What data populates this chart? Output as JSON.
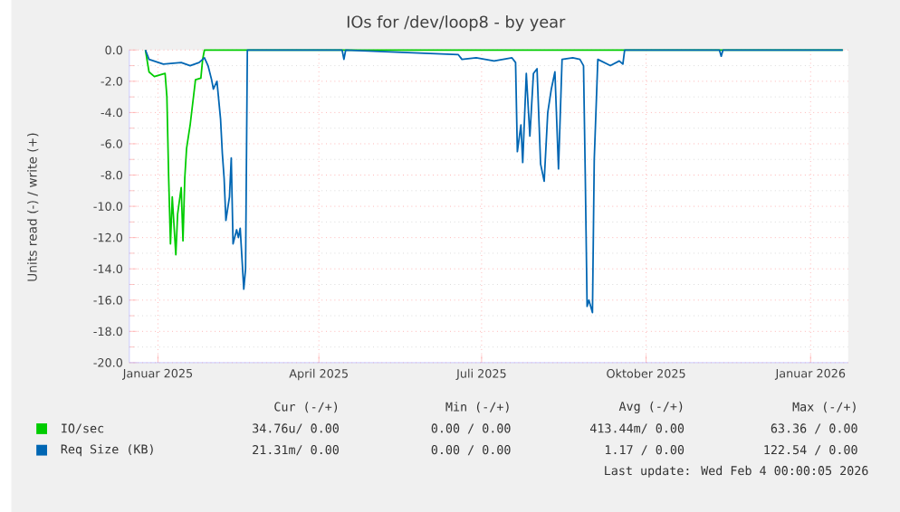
{
  "chart_data": {
    "type": "line",
    "title": "IOs for /dev/loop8 - by year",
    "ylabel": "Units read (-) / write (+)",
    "xlim": [
      "2024-12-16",
      "2026-01-22"
    ],
    "xticks": [
      {
        "value": "2025-01-01",
        "label": "Januar 2025"
      },
      {
        "value": "2025-04-01",
        "label": "April 2025"
      },
      {
        "value": "2025-07-01",
        "label": "Juli 2025"
      },
      {
        "value": "2025-10-01",
        "label": "Oktober 2025"
      },
      {
        "value": "2026-01-01",
        "label": "Januar 2026"
      }
    ],
    "ylim": [
      -20,
      0
    ],
    "yticks": [
      {
        "value": -20,
        "label": "-20.0"
      },
      {
        "value": -18,
        "label": "-18.0"
      },
      {
        "value": -16,
        "label": "-16.0"
      },
      {
        "value": -14,
        "label": "-14.0"
      },
      {
        "value": -12,
        "label": "-12.0"
      },
      {
        "value": -10,
        "label": "-10.0"
      },
      {
        "value": -8,
        "label": "-8.0"
      },
      {
        "value": -6,
        "label": "-6.0"
      },
      {
        "value": -4,
        "label": "-4.0"
      },
      {
        "value": -2,
        "label": "-2.0"
      },
      {
        "value": 0,
        "label": "0.0"
      }
    ],
    "grid": true,
    "legend": "bottom",
    "marker": "none",
    "line_style": "solid",
    "series": [
      {
        "name": "IO/sec",
        "color": "#00cc00",
        "x": [
          "2024-12-25",
          "2024-12-27",
          "2024-12-30",
          "2025-01-02",
          "2025-01-05",
          "2025-01-06",
          "2025-01-07",
          "2025-01-08",
          "2025-01-09",
          "2025-01-11",
          "2025-01-12",
          "2025-01-14",
          "2025-01-15",
          "2025-01-16",
          "2025-01-17",
          "2025-01-19",
          "2025-01-22",
          "2025-01-25",
          "2025-01-26",
          "2025-01-27",
          "2026-01-19"
        ],
        "values": [
          0,
          -1.4,
          -1.7,
          -1.6,
          -1.5,
          -3.0,
          -8.2,
          -12.4,
          -9.4,
          -13.1,
          -10.5,
          -8.8,
          -12.2,
          -8.2,
          -6.3,
          -4.8,
          -1.9,
          -1.8,
          -0.6,
          0,
          0
        ]
      },
      {
        "name": "Req Size (KB)",
        "color": "#0066b3",
        "x": [
          "2024-12-25",
          "2024-12-27",
          "2025-01-04",
          "2025-01-14",
          "2025-01-19",
          "2025-01-24",
          "2025-01-27",
          "2025-01-29",
          "2025-01-31",
          "2025-02-01",
          "2025-02-03",
          "2025-02-05",
          "2025-02-06",
          "2025-02-07",
          "2025-02-08",
          "2025-02-10",
          "2025-02-11",
          "2025-02-12",
          "2025-02-14",
          "2025-02-15",
          "2025-02-16",
          "2025-02-18",
          "2025-02-19",
          "2025-02-20",
          "2025-04-14",
          "2025-04-15",
          "2025-04-16",
          "2025-06-18",
          "2025-06-20",
          "2025-06-28",
          "2025-07-08",
          "2025-07-18",
          "2025-07-20",
          "2025-07-21",
          "2025-07-23",
          "2025-07-24",
          "2025-07-26",
          "2025-07-28",
          "2025-07-30",
          "2025-08-01",
          "2025-08-03",
          "2025-08-05",
          "2025-08-07",
          "2025-08-09",
          "2025-08-11",
          "2025-08-13",
          "2025-08-15",
          "2025-08-21",
          "2025-08-25",
          "2025-08-27",
          "2025-08-28",
          "2025-08-29",
          "2025-08-30",
          "2025-09-01",
          "2025-09-02",
          "2025-09-04",
          "2025-09-11",
          "2025-09-16",
          "2025-09-18",
          "2025-09-19",
          "2025-11-11",
          "2025-11-12",
          "2025-11-13",
          "2026-01-19"
        ],
        "values": [
          0,
          -0.6,
          -0.9,
          -0.8,
          -1.0,
          -0.8,
          -0.5,
          -1.0,
          -1.9,
          -2.5,
          -2.0,
          -4.4,
          -6.6,
          -8.2,
          -10.9,
          -9.4,
          -6.9,
          -12.4,
          -11.5,
          -12.0,
          -11.4,
          -15.3,
          -14.0,
          0,
          0,
          -0.6,
          0,
          -0.3,
          -0.6,
          -0.5,
          -0.7,
          -0.5,
          -0.8,
          -6.5,
          -4.8,
          -7.2,
          -1.5,
          -5.5,
          -1.5,
          -1.2,
          -7.3,
          -8.4,
          -4.0,
          -2.5,
          -1.4,
          -7.6,
          -0.6,
          -0.5,
          -0.6,
          -1.0,
          -8.2,
          -16.4,
          -16.0,
          -16.8,
          -7.0,
          -0.6,
          -1.0,
          -0.7,
          -0.9,
          0,
          0,
          -0.4,
          0,
          0
        ]
      }
    ],
    "annotations": [
      "Cur (-/+)",
      "Min (-/+)",
      "Avg (-/+)",
      "Max (-/+)",
      "34.76u/ 0.00",
      "0.00 / 0.00",
      "413.44m/ 0.00",
      "63.36 / 0.00",
      "21.31m/ 0.00",
      "0.00 / 0.00",
      "1.17 / 0.00",
      "122.54 / 0.00",
      "Last update: Wed Feb  4 00:00:05 2026"
    ]
  }
}
